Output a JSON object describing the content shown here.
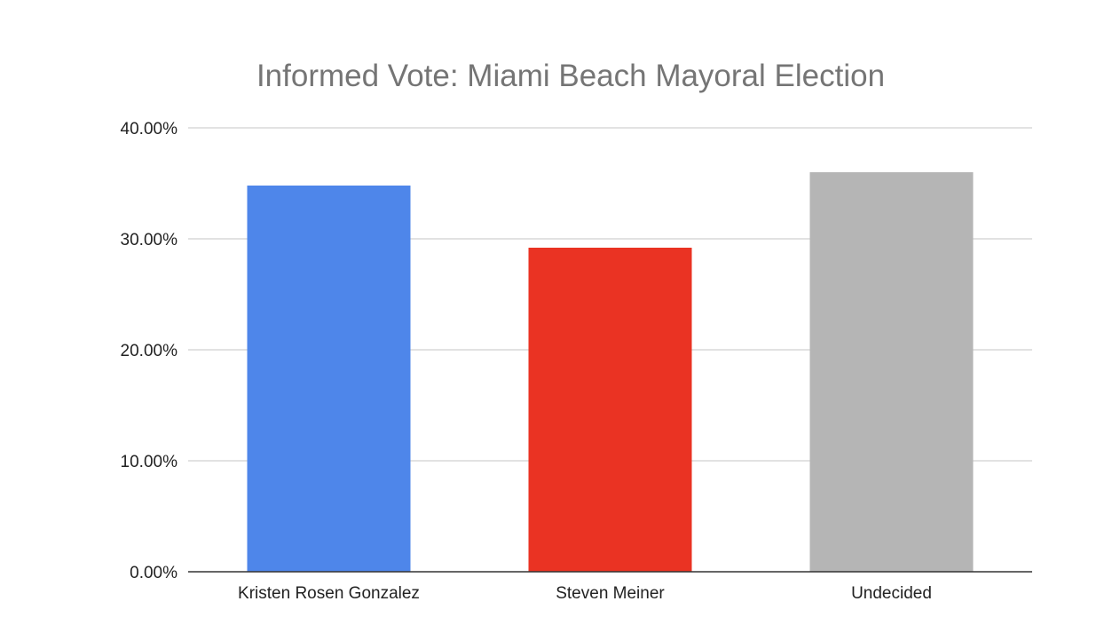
{
  "chart_data": {
    "type": "bar",
    "title": "Informed Vote: Miami Beach Mayoral Election",
    "categories": [
      "Kristen Rosen Gonzalez",
      "Steven Meiner",
      "Undecided"
    ],
    "values": [
      34.8,
      29.2,
      36.0
    ],
    "colors": [
      "#4e86ea",
      "#ea3323",
      "#b5b5b5"
    ],
    "ylim": [
      0,
      40
    ],
    "yticks": [
      0,
      10,
      20,
      30,
      40
    ],
    "ytick_labels": [
      "0.00%",
      "10.00%",
      "20.00%",
      "30.00%",
      "40.00%"
    ],
    "xlabel": "",
    "ylabel": "",
    "grid": true,
    "legend": "none"
  }
}
